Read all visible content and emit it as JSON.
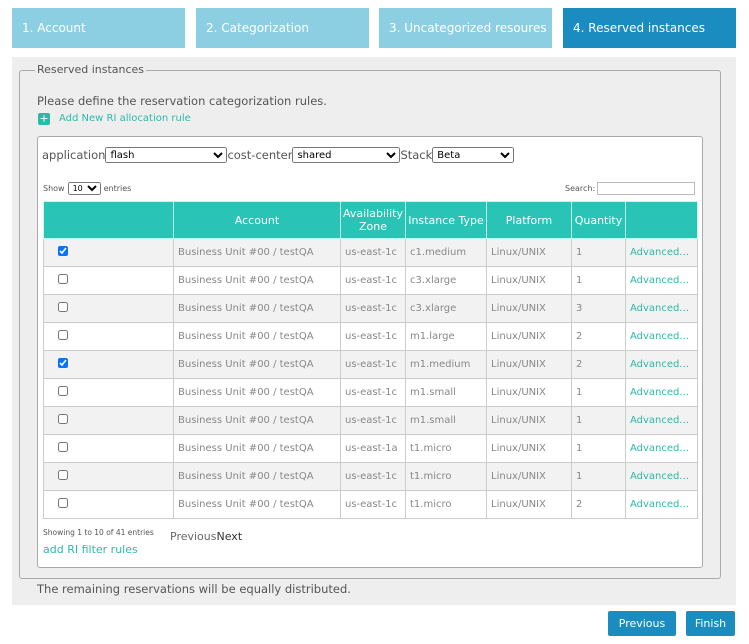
{
  "tabs": [
    {
      "label": "1. Account",
      "active": false
    },
    {
      "label": "2. Categorization",
      "active": false
    },
    {
      "label": "3. Uncategorized resoures",
      "active": false
    },
    {
      "label": "4. Reserved instances",
      "active": true
    }
  ],
  "fieldset": {
    "legend": "Reserved instances",
    "instruction": "Please define the reservation categorization rules.",
    "add_rule": "Add New RI allocation rule"
  },
  "filters": [
    {
      "label": "application",
      "value": "flash"
    },
    {
      "label": "cost-center",
      "value": "shared"
    },
    {
      "label": "Stack",
      "value": "Beta"
    }
  ],
  "table_controls": {
    "show": "Show",
    "length": "10",
    "entries": "entries",
    "search": "Search:"
  },
  "table": {
    "columns": [
      "Account",
      "Availability Zone",
      "Instance Type",
      "Platform",
      "Quantity"
    ],
    "rows": [
      {
        "checked": true,
        "account": "Business Unit #00 / testQA",
        "zone": "us-east-1c",
        "type": "c1.medium",
        "platform": "Linux/UNIX",
        "quantity": 1,
        "action": "Advanced..."
      },
      {
        "checked": false,
        "account": "Business Unit #00 / testQA",
        "zone": "us-east-1c",
        "type": "c3.xlarge",
        "platform": "Linux/UNIX",
        "quantity": 1,
        "action": "Advanced..."
      },
      {
        "checked": false,
        "account": "Business Unit #00 / testQA",
        "zone": "us-east-1c",
        "type": "c3.xlarge",
        "platform": "Linux/UNIX",
        "quantity": 3,
        "action": "Advanced..."
      },
      {
        "checked": false,
        "account": "Business Unit #00 / testQA",
        "zone": "us-east-1c",
        "type": "m1.large",
        "platform": "Linux/UNIX",
        "quantity": 2,
        "action": "Advanced..."
      },
      {
        "checked": true,
        "account": "Business Unit #00 / testQA",
        "zone": "us-east-1c",
        "type": "m1.medium",
        "platform": "Linux/UNIX",
        "quantity": 2,
        "action": "Advanced..."
      },
      {
        "checked": false,
        "account": "Business Unit #00 / testQA",
        "zone": "us-east-1c",
        "type": "m1.small",
        "platform": "Linux/UNIX",
        "quantity": 1,
        "action": "Advanced..."
      },
      {
        "checked": false,
        "account": "Business Unit #00 / testQA",
        "zone": "us-east-1c",
        "type": "m1.small",
        "platform": "Linux/UNIX",
        "quantity": 1,
        "action": "Advanced..."
      },
      {
        "checked": false,
        "account": "Business Unit #00 / testQA",
        "zone": "us-east-1a",
        "type": "t1.micro",
        "platform": "Linux/UNIX",
        "quantity": 1,
        "action": "Advanced..."
      },
      {
        "checked": false,
        "account": "Business Unit #00 / testQA",
        "zone": "us-east-1c",
        "type": "t1.micro",
        "platform": "Linux/UNIX",
        "quantity": 1,
        "action": "Advanced..."
      },
      {
        "checked": false,
        "account": "Business Unit #00 / testQA",
        "zone": "us-east-1c",
        "type": "t1.micro",
        "platform": "Linux/UNIX",
        "quantity": 2,
        "action": "Advanced..."
      }
    ]
  },
  "table_footer": {
    "info": "Showing 1 to 10 of 41 entries",
    "previous": "Previous",
    "next": "Next",
    "add_filter": "add RI filter rules"
  },
  "note": "The remaining reservations will be equally distributed.",
  "buttons": [
    "Previous",
    "Finish"
  ]
}
